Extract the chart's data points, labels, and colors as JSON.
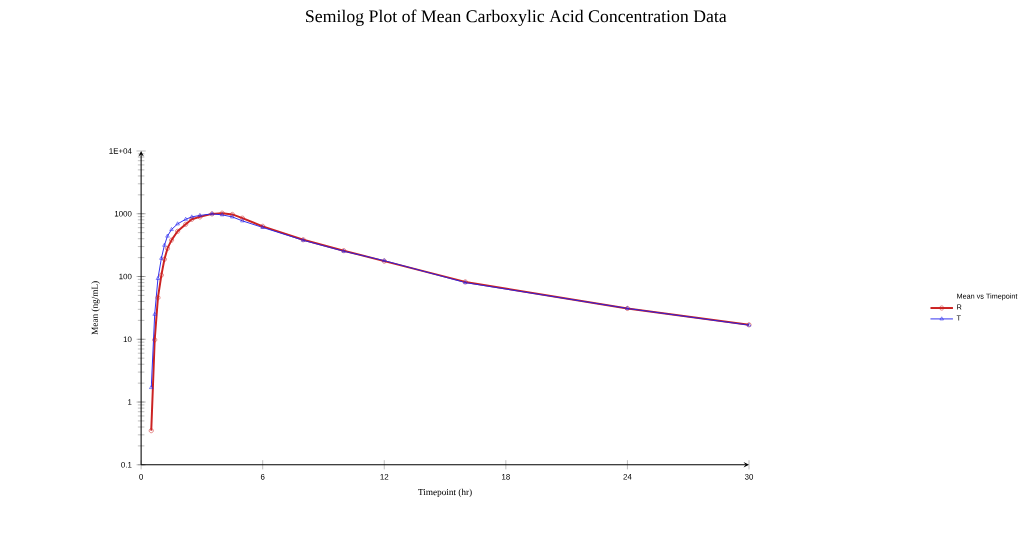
{
  "chart_data": {
    "type": "line",
    "title": "Semilog Plot of Mean Carboxylic Acid Concentration Data",
    "xlabel": "Timepoint (hr)",
    "ylabel": "Mean (ng/mL)",
    "legend_title": "Mean vs Timepoint",
    "x": [
      0.5,
      0.67,
      0.83,
      1,
      1.15,
      1.3,
      1.5,
      1.8,
      2.2,
      2.5,
      2.9,
      3.5,
      4,
      4.5,
      5,
      6,
      8,
      10,
      12,
      16,
      24,
      30
    ],
    "series": [
      {
        "name": "R",
        "color": "#cc2222",
        "marker": "circle",
        "values": [
          0.35,
          9.8,
          46,
          105,
          188,
          280,
          380,
          525,
          680,
          815,
          890,
          995,
          1020,
          975,
          850,
          630,
          385,
          258,
          176,
          82,
          31,
          17
        ]
      },
      {
        "name": "T",
        "color": "#2222ee",
        "marker": "triangle",
        "values": [
          1.7,
          25,
          93,
          195,
          315,
          440,
          560,
          690,
          815,
          890,
          940,
          995,
          960,
          890,
          770,
          605,
          378,
          253,
          179,
          80,
          31,
          16.8
        ]
      }
    ],
    "log": "y",
    "xlim": [
      0,
      30
    ],
    "ylim": [
      0.1,
      10000
    ],
    "xticks": [
      0,
      6,
      12,
      18,
      24,
      30
    ],
    "yticks": [
      0.1,
      1,
      10,
      100,
      1000,
      {
        "value": 10000,
        "label": "1E+04"
      }
    ],
    "grid": false,
    "legend": "right",
    "line_style": "solid"
  }
}
